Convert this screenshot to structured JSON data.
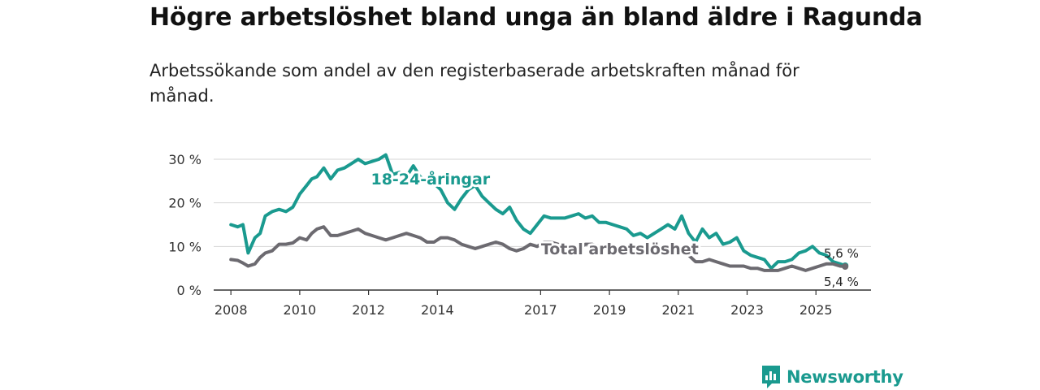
{
  "title": "Högre arbetslöshet bland unga än bland äldre i Ragunda",
  "subtitle": "Arbetssökande som andel av den registerbaserade arbetskraften månad för månad.",
  "brand": {
    "name": "Newsworthy",
    "icon": "chart-bubble-icon",
    "color": "#1a9a8f"
  },
  "chart_data": {
    "type": "line",
    "xlim": [
      2007.5,
      2026.6
    ],
    "ylim": [
      0,
      30
    ],
    "x_ticks": [
      2008,
      2010,
      2012,
      2014,
      2017,
      2019,
      2021,
      2023,
      2025
    ],
    "y_ticks": [
      {
        "value": 0,
        "label": "0 %"
      },
      {
        "value": 10,
        "label": "10 %"
      },
      {
        "value": 20,
        "label": "20 %"
      },
      {
        "value": 30,
        "label": "30 %"
      }
    ],
    "series": [
      {
        "name": "18-24-åringar",
        "color": "#1a9a8f",
        "end_label": "5,6 %",
        "x": [
          2008.0,
          2008.2,
          2008.35,
          2008.5,
          2008.7,
          2008.85,
          2009.0,
          2009.2,
          2009.4,
          2009.6,
          2009.8,
          2010.0,
          2010.2,
          2010.35,
          2010.5,
          2010.7,
          2010.9,
          2011.1,
          2011.3,
          2011.5,
          2011.7,
          2011.9,
          2012.1,
          2012.3,
          2012.5,
          2012.7,
          2012.9,
          2013.1,
          2013.3,
          2013.5,
          2013.7,
          2013.9,
          2014.1,
          2014.3,
          2014.5,
          2014.7,
          2014.9,
          2015.1,
          2015.3,
          2015.5,
          2015.7,
          2015.9,
          2016.1,
          2016.3,
          2016.5,
          2016.7,
          2016.9,
          2017.1,
          2017.3,
          2017.5,
          2017.7,
          2017.9,
          2018.1,
          2018.3,
          2018.5,
          2018.7,
          2018.9,
          2019.1,
          2019.3,
          2019.5,
          2019.7,
          2019.9,
          2020.1,
          2020.3,
          2020.5,
          2020.7,
          2020.9,
          2021.1,
          2021.3,
          2021.5,
          2021.7,
          2021.9,
          2022.1,
          2022.3,
          2022.5,
          2022.7,
          2022.9,
          2023.1,
          2023.3,
          2023.5,
          2023.7,
          2023.9,
          2024.1,
          2024.3,
          2024.5,
          2024.7,
          2024.9,
          2025.1,
          2025.3,
          2025.5,
          2025.7,
          2025.85
        ],
        "values": [
          15,
          14.5,
          15,
          8.5,
          12,
          13,
          17,
          18,
          18.5,
          18,
          19,
          22,
          24,
          25.5,
          26,
          28,
          25.5,
          27.5,
          28,
          29,
          30,
          29,
          29.5,
          30,
          31,
          26.5,
          27,
          26,
          28.5,
          26,
          24.5,
          24.5,
          23,
          20,
          18.5,
          21,
          23,
          24,
          21.5,
          20,
          18.5,
          17.5,
          19,
          16,
          14,
          13,
          15,
          17,
          16.5,
          16.5,
          16.5,
          17,
          17.5,
          16.5,
          17,
          15.5,
          15.5,
          15,
          14.5,
          14,
          12.5,
          13,
          12,
          13,
          14,
          15,
          14,
          17,
          13,
          11,
          14,
          12,
          13,
          10.5,
          11,
          12,
          9,
          8,
          7.5,
          7,
          5,
          6.5,
          6.5,
          7,
          8.5,
          9,
          10,
          8.5,
          8,
          6.5,
          6,
          5.6
        ]
      },
      {
        "name": "Total arbetslöshet",
        "color": "#6c6a70",
        "end_label": "5,4 %",
        "x": [
          2008.0,
          2008.2,
          2008.35,
          2008.5,
          2008.7,
          2008.85,
          2009.0,
          2009.2,
          2009.4,
          2009.6,
          2009.8,
          2010.0,
          2010.2,
          2010.35,
          2010.5,
          2010.7,
          2010.9,
          2011.1,
          2011.3,
          2011.5,
          2011.7,
          2011.9,
          2012.1,
          2012.3,
          2012.5,
          2012.7,
          2012.9,
          2013.1,
          2013.3,
          2013.5,
          2013.7,
          2013.9,
          2014.1,
          2014.3,
          2014.5,
          2014.7,
          2014.9,
          2015.1,
          2015.3,
          2015.5,
          2015.7,
          2015.9,
          2016.1,
          2016.3,
          2016.5,
          2016.7,
          2016.9,
          2017.1,
          2017.3,
          2017.5,
          2017.7,
          2017.9,
          2018.1,
          2018.3,
          2018.5,
          2018.7,
          2018.9,
          2019.1,
          2019.3,
          2019.5,
          2019.7,
          2019.9,
          2020.1,
          2020.3,
          2020.5,
          2020.7,
          2020.9,
          2021.1,
          2021.3,
          2021.5,
          2021.7,
          2021.9,
          2022.1,
          2022.3,
          2022.5,
          2022.7,
          2022.9,
          2023.1,
          2023.3,
          2023.5,
          2023.7,
          2023.9,
          2024.1,
          2024.3,
          2024.5,
          2024.7,
          2024.9,
          2025.1,
          2025.3,
          2025.5,
          2025.7,
          2025.85
        ],
        "values": [
          7,
          6.8,
          6.2,
          5.5,
          6,
          7.5,
          8.5,
          9,
          10.5,
          10.5,
          10.8,
          12,
          11.5,
          13,
          14,
          14.5,
          12.5,
          12.5,
          13,
          13.5,
          14,
          13,
          12.5,
          12,
          11.5,
          12,
          12.5,
          13,
          12.5,
          12,
          11,
          11,
          12,
          12,
          11.5,
          10.5,
          10,
          9.5,
          10,
          10.5,
          11,
          10.5,
          9.5,
          9,
          9.5,
          10.5,
          10,
          11,
          11,
          10.5,
          10,
          9.5,
          9.5,
          10.5,
          10.5,
          10,
          9.5,
          9,
          9.5,
          9,
          9,
          9,
          9,
          9,
          9,
          9,
          9,
          9,
          8,
          6.5,
          6.5,
          7,
          6.5,
          6,
          5.5,
          5.5,
          5.5,
          5,
          5,
          4.5,
          4.5,
          4.5,
          5,
          5.5,
          5,
          4.5,
          5,
          5.5,
          6,
          6,
          5.5,
          5.4
        ]
      }
    ],
    "annotations": [
      {
        "text": "18-24-åringar",
        "series": 0,
        "x": 2013.8,
        "y": 24.2
      },
      {
        "text": "Total arbetslöshet",
        "series": 1,
        "x": 2019.3,
        "y": 8.2
      }
    ]
  }
}
